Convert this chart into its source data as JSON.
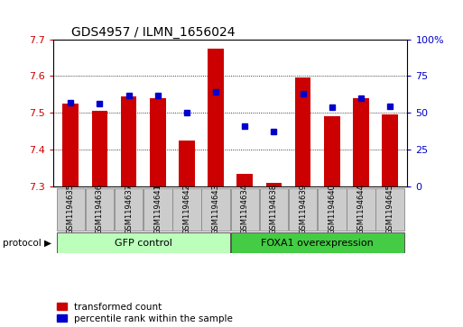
{
  "title": "GDS4957 / ILMN_1656024",
  "samples": [
    "GSM1194635",
    "GSM1194636",
    "GSM1194637",
    "GSM1194641",
    "GSM1194642",
    "GSM1194643",
    "GSM1194634",
    "GSM1194638",
    "GSM1194639",
    "GSM1194640",
    "GSM1194644",
    "GSM1194645"
  ],
  "red_values": [
    7.525,
    7.505,
    7.545,
    7.54,
    7.425,
    7.675,
    7.335,
    7.31,
    7.595,
    7.49,
    7.54,
    7.495
  ],
  "blue_values": [
    7.528,
    7.525,
    7.548,
    7.546,
    7.5,
    7.558,
    7.465,
    7.45,
    7.552,
    7.515,
    7.54,
    7.518
  ],
  "ylim": [
    7.3,
    7.7
  ],
  "yticks_left": [
    7.3,
    7.4,
    7.5,
    7.6,
    7.7
  ],
  "yticks_right_vals": [
    0,
    25,
    50,
    75,
    100
  ],
  "yticks_right_pos": [
    7.3,
    7.4,
    7.5,
    7.6,
    7.7
  ],
  "group1_label": "GFP control",
  "group2_label": "FOXA1 overexpression",
  "protocol_label": "protocol",
  "legend_red": "transformed count",
  "legend_blue": "percentile rank within the sample",
  "bar_color": "#cc0000",
  "dot_color": "#0000cc",
  "gfp_color": "#bbffbb",
  "foxa1_color": "#44cc44",
  "baseline": 7.3,
  "bar_width": 0.55,
  "tick_label_color_left": "#cc0000",
  "tick_label_color_right": "#0000cc",
  "label_box_color": "#cccccc",
  "title_fontsize": 10,
  "tick_fontsize": 8,
  "label_fontsize": 6,
  "proto_fontsize": 8
}
